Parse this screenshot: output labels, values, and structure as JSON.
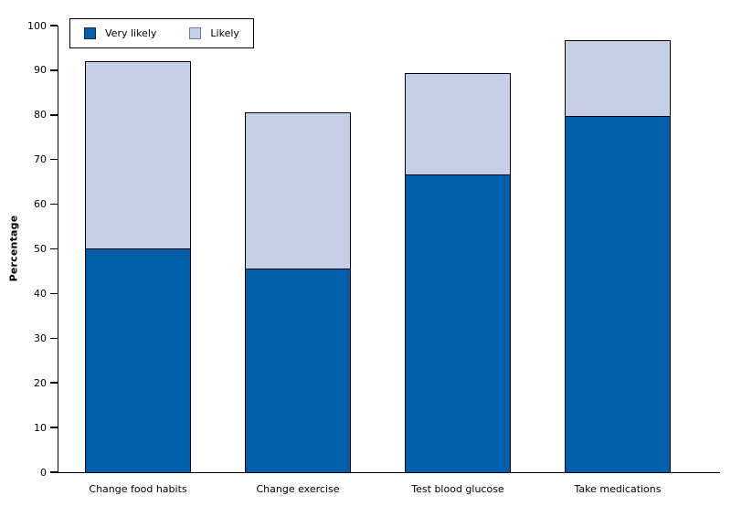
{
  "chart_data": {
    "type": "bar",
    "stacked": true,
    "categories": [
      "Change food habits",
      "Change exercise",
      "Test blood glucose",
      "Take medications"
    ],
    "series": [
      {
        "name": "Very likely",
        "color": "#005FAA",
        "swatch_border": "#1b2a4a",
        "values": [
          50.0,
          45.3,
          66.5,
          79.5
        ]
      },
      {
        "name": "Likely",
        "color": "#C6CFE8",
        "swatch_border": "#6e7ba3",
        "values": [
          42.0,
          35.3,
          22.8,
          17.2
        ]
      }
    ],
    "stack_totals": [
      92.0,
      80.6,
      89.3,
      96.7
    ],
    "ylabel": "Percentage",
    "ylim": [
      0,
      100
    ],
    "yticks": [
      0,
      10,
      20,
      30,
      40,
      50,
      60,
      70,
      80,
      90,
      100
    ],
    "grid": false,
    "legend_position": "top-left",
    "axis_color": "#000000",
    "text_color": "#000000",
    "background": "#ffffff"
  }
}
